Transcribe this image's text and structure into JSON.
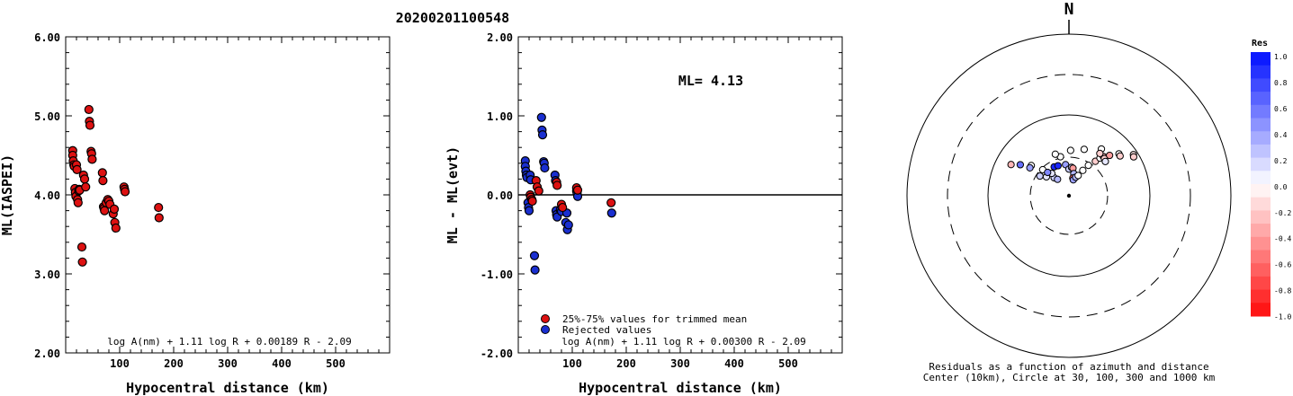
{
  "title": "20200201100548",
  "chart_data": [
    {
      "type": "scatter",
      "ylabel": "ML(IASPEI)",
      "xlabel": "Hypocentral distance (km)",
      "xlim": [
        0,
        600
      ],
      "ylim": [
        2.0,
        6.0
      ],
      "xticks": [
        "100",
        "200",
        "300",
        "400",
        "500"
      ],
      "yticks": [
        "2.00",
        "3.00",
        "4.00",
        "5.00",
        "6.00"
      ],
      "formula": "log A(nm) + 1.11 log R + 0.00189 R - 2.09",
      "series": [
        {
          "color": "#dd1111",
          "points": [
            [
              13,
              4.56
            ],
            [
              13,
              4.5
            ],
            [
              14,
              4.43
            ],
            [
              15,
              4.38
            ],
            [
              16,
              4.36
            ],
            [
              17,
              4.08
            ],
            [
              18,
              4.03
            ],
            [
              19,
              3.98
            ],
            [
              20,
              4.38
            ],
            [
              21,
              4.32
            ],
            [
              22,
              3.94
            ],
            [
              23,
              3.9
            ],
            [
              24,
              4.05
            ],
            [
              25,
              4.07
            ],
            [
              26,
              4.06
            ],
            [
              30,
              3.34
            ],
            [
              31,
              3.15
            ],
            [
              33,
              4.25
            ],
            [
              35,
              4.2
            ],
            [
              37,
              4.1
            ],
            [
              43,
              5.08
            ],
            [
              44,
              4.93
            ],
            [
              45,
              4.88
            ],
            [
              47,
              4.55
            ],
            [
              48,
              4.52
            ],
            [
              49,
              4.45
            ],
            [
              68,
              4.28
            ],
            [
              69,
              4.18
            ],
            [
              70,
              3.85
            ],
            [
              71,
              3.83
            ],
            [
              72,
              3.8
            ],
            [
              75,
              3.9
            ],
            [
              78,
              3.94
            ],
            [
              80,
              3.92
            ],
            [
              82,
              3.88
            ],
            [
              88,
              3.76
            ],
            [
              90,
              3.82
            ],
            [
              91,
              3.65
            ],
            [
              93,
              3.58
            ],
            [
              108,
              4.1
            ],
            [
              109,
              4.07
            ],
            [
              110,
              4.04
            ],
            [
              172,
              3.84
            ],
            [
              173,
              3.71
            ]
          ]
        }
      ]
    },
    {
      "type": "scatter",
      "ylabel": "ML - ML(evt)",
      "xlabel": "Hypocentral distance (km)",
      "xlim": [
        0,
        600
      ],
      "ylim": [
        -2.0,
        2.0
      ],
      "xticks": [
        "100",
        "200",
        "300",
        "400",
        "500"
      ],
      "yticks": [
        "-2.00",
        "-1.00",
        "0.00",
        "1.00",
        "2.00"
      ],
      "annotation": "ML= 4.13",
      "formula": "log A(nm) + 1.11 log R + 0.00300 R - 2.09",
      "legend": [
        {
          "label": "25%-75% values for trimmed mean",
          "color": "#dd1111"
        },
        {
          "label": "Rejected values",
          "color": "#1a2fd0"
        }
      ],
      "series": [
        {
          "name": "25%-75% values for trimmed mean",
          "color": "#dd1111",
          "points": [
            [
              22,
              0.0
            ],
            [
              23,
              -0.03
            ],
            [
              25,
              -0.06
            ],
            [
              26,
              -0.08
            ],
            [
              33,
              0.18
            ],
            [
              35,
              0.1
            ],
            [
              38,
              0.05
            ],
            [
              71,
              0.16
            ],
            [
              72,
              0.12
            ],
            [
              80,
              -0.12
            ],
            [
              82,
              -0.16
            ],
            [
              108,
              0.09
            ],
            [
              110,
              0.06
            ],
            [
              172,
              -0.1
            ]
          ]
        },
        {
          "name": "Rejected values",
          "color": "#1a2fd0",
          "points": [
            [
              13,
              0.43
            ],
            [
              13,
              0.36
            ],
            [
              14,
              0.3
            ],
            [
              15,
              0.25
            ],
            [
              16,
              0.22
            ],
            [
              18,
              -0.1
            ],
            [
              19,
              -0.16
            ],
            [
              20,
              -0.2
            ],
            [
              22,
              0.25
            ],
            [
              23,
              0.19
            ],
            [
              30,
              -0.77
            ],
            [
              31,
              -0.95
            ],
            [
              43,
              0.98
            ],
            [
              44,
              0.82
            ],
            [
              45,
              0.76
            ],
            [
              47,
              0.42
            ],
            [
              48,
              0.4
            ],
            [
              49,
              0.34
            ],
            [
              68,
              0.25
            ],
            [
              69,
              0.18
            ],
            [
              70,
              -0.2
            ],
            [
              71,
              -0.25
            ],
            [
              72,
              -0.28
            ],
            [
              78,
              -0.19
            ],
            [
              80,
              -0.21
            ],
            [
              88,
              -0.35
            ],
            [
              90,
              -0.23
            ],
            [
              91,
              -0.44
            ],
            [
              93,
              -0.38
            ],
            [
              108,
              0.05
            ],
            [
              109,
              0.02
            ],
            [
              110,
              -0.02
            ],
            [
              173,
              -0.23
            ]
          ]
        }
      ]
    },
    {
      "type": "polar-scatter",
      "north_label": "N",
      "caption_line1": "Residuals as a function of azimuth and distance",
      "caption_line2": "Center (10km), Circle at 30, 100, 300 and 1000 km",
      "rings_km": [
        30,
        100,
        300,
        1000
      ],
      "colorbar_title": "Res",
      "colorbar_labels": [
        "1.0",
        "0.8",
        "0.6",
        "0.4",
        "0.2",
        "0.0",
        "-0.2",
        "-0.4",
        "-0.6",
        "-0.8",
        "-1.0"
      ],
      "points_res": [
        [
          0.0,
          0.85,
          -0.3
        ],
        [
          0.15,
          0.8,
          0.6
        ],
        [
          0.2,
          0.5,
          0.2
        ],
        [
          0.35,
          0.46,
          0.1
        ],
        [
          0.55,
          0.42,
          0.2
        ],
        [
          0.62,
          0.38,
          0.3
        ],
        [
          0.58,
          0.52,
          0.1
        ],
        [
          0.72,
          0.66,
          0.9
        ],
        [
          0.8,
          0.68,
          0.9
        ],
        [
          0.94,
          0.7,
          0.4
        ],
        [
          1.0,
          0.6,
          0.2
        ],
        [
          1.05,
          0.64,
          0.2
        ],
        [
          1.08,
          0.62,
          -0.4
        ],
        [
          1.12,
          0.5,
          0.3
        ],
        [
          1.12,
          0.4,
          -0.6
        ],
        [
          1.15,
          0.36,
          0.4
        ],
        [
          1.2,
          0.42,
          0.3
        ],
        [
          1.25,
          0.46,
          0.0
        ],
        [
          1.3,
          0.58,
          0.0
        ],
        [
          1.35,
          0.7,
          0.0
        ],
        [
          1.42,
          0.8,
          -0.2
        ],
        [
          1.45,
          0.88,
          0.0
        ],
        [
          1.48,
          0.92,
          -0.3
        ],
        [
          1.52,
          0.88,
          -0.2
        ],
        [
          1.55,
          0.96,
          -0.4
        ],
        [
          1.58,
          0.82,
          0.1
        ],
        [
          1.65,
          1.02,
          0.0
        ],
        [
          1.7,
          0.98,
          -0.2
        ],
        [
          1.85,
          1.06,
          -0.1
        ],
        [
          1.9,
          1.02,
          -0.2
        ],
        [
          0.32,
          0.74,
          0.0
        ],
        [
          0.45,
          0.62,
          0.0
        ],
        [
          0.24,
          0.7,
          0.4
        ],
        [
          0.5,
          0.55,
          0.5
        ],
        [
          0.88,
          0.88,
          0.0
        ],
        [
          0.82,
          0.94,
          0.0
        ],
        [
          1.02,
          1.02,
          0.0
        ],
        [
          1.18,
          1.05,
          0.0
        ],
        [
          1.38,
          1.08,
          0.0
        ],
        [
          1.4,
          0.98,
          -0.2
        ]
      ]
    }
  ]
}
